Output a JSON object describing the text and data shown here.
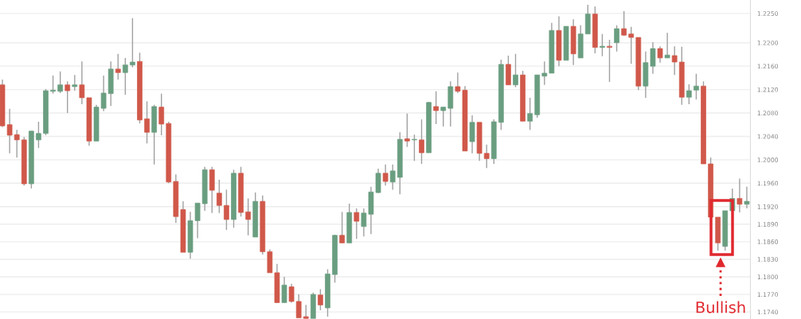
{
  "chart_data": {
    "type": "candlestick",
    "categories": [
      null,
      null,
      null,
      null,
      null,
      null,
      null,
      null,
      null,
      null,
      null,
      null,
      null,
      null,
      null,
      null,
      null,
      null,
      null,
      null,
      null,
      null,
      null,
      null,
      null,
      null,
      null,
      null,
      null,
      null,
      null,
      null,
      null,
      null,
      null,
      null,
      null,
      null,
      null,
      null,
      null,
      null,
      null,
      null,
      null,
      null,
      null,
      null,
      null,
      null,
      null,
      null,
      null,
      null,
      null,
      null,
      null,
      null,
      null,
      null,
      null,
      null,
      null,
      null,
      null,
      null,
      null,
      null,
      null,
      null,
      null,
      null,
      null,
      null,
      null,
      null,
      null,
      null,
      null,
      null,
      null,
      null,
      null,
      null,
      null,
      null,
      null,
      null,
      null,
      null,
      null,
      null,
      null,
      null,
      null,
      null,
      null,
      null,
      null,
      null,
      null,
      null,
      null,
      null
    ],
    "ohlc": [
      [
        1.2128,
        1.2137,
        1.2056,
        1.2058
      ],
      [
        1.206,
        1.2087,
        1.2011,
        1.2042
      ],
      [
        1.2043,
        1.2051,
        1.2004,
        1.2034
      ],
      [
        1.2034,
        1.2039,
        1.1956,
        1.1959
      ],
      [
        1.1959,
        1.2049,
        1.1951,
        1.2049
      ],
      [
        1.2034,
        1.2065,
        1.202,
        1.2045
      ],
      [
        1.2045,
        1.2121,
        1.2042,
        1.2118
      ],
      [
        1.2117,
        1.2144,
        1.2113,
        1.2119
      ],
      [
        1.2117,
        1.2151,
        1.2114,
        1.2128
      ],
      [
        1.2128,
        1.2134,
        1.208,
        1.2118
      ],
      [
        1.2125,
        1.2145,
        1.2118,
        1.2128
      ],
      [
        1.2128,
        1.2168,
        1.2095,
        1.2106
      ],
      [
        1.2106,
        1.2106,
        1.2024,
        1.2032
      ],
      [
        1.2032,
        1.2094,
        1.2032,
        1.209
      ],
      [
        1.2088,
        1.2144,
        1.2083,
        1.2114
      ],
      [
        1.2113,
        1.2168,
        1.2092,
        1.2155
      ],
      [
        1.2155,
        1.2181,
        1.2137,
        1.2149
      ],
      [
        1.2149,
        1.2174,
        1.2111,
        1.2162
      ],
      [
        1.2162,
        1.2242,
        1.2158,
        1.2167
      ],
      [
        1.2168,
        1.2183,
        1.2062,
        1.2068
      ],
      [
        1.207,
        1.21,
        1.2028,
        1.2047
      ],
      [
        1.2047,
        1.2094,
        1.1992,
        1.2091
      ],
      [
        1.209,
        1.2113,
        1.2042,
        1.2061
      ],
      [
        1.2062,
        1.2065,
        1.196,
        1.1962
      ],
      [
        1.1963,
        1.1975,
        1.1892,
        1.1903
      ],
      [
        1.1915,
        1.1929,
        1.1842,
        1.1842
      ],
      [
        1.1842,
        1.1911,
        1.1831,
        1.1896
      ],
      [
        1.1896,
        1.1926,
        1.1866,
        1.1926
      ],
      [
        1.1925,
        1.1988,
        1.1913,
        1.1983
      ],
      [
        1.1983,
        1.1988,
        1.1909,
        1.1948
      ],
      [
        1.1943,
        1.1966,
        1.1909,
        1.1922
      ],
      [
        1.1922,
        1.1949,
        1.188,
        1.1898
      ],
      [
        1.1898,
        1.1983,
        1.1884,
        1.1977
      ],
      [
        1.1977,
        1.1988,
        1.1903,
        1.191
      ],
      [
        1.1911,
        1.1934,
        1.1871,
        1.1898
      ],
      [
        1.1868,
        1.1944,
        1.1868,
        1.1929
      ],
      [
        1.1929,
        1.1939,
        1.1838,
        1.1843
      ],
      [
        1.1843,
        1.1847,
        1.1807,
        1.1807
      ],
      [
        1.1807,
        1.1822,
        1.1756,
        1.1756
      ],
      [
        1.1756,
        1.18,
        1.1756,
        1.1786
      ],
      [
        1.1783,
        1.1788,
        1.1756,
        1.1758
      ],
      [
        1.1758,
        1.177,
        1.173,
        1.173
      ],
      [
        1.1732,
        1.1752,
        1.1729,
        1.1729
      ],
      [
        1.1729,
        1.1773,
        1.1729,
        1.177
      ],
      [
        1.1769,
        1.1779,
        1.1743,
        1.1752
      ],
      [
        1.1747,
        1.1813,
        1.1732,
        1.1805
      ],
      [
        1.1804,
        1.1872,
        1.179,
        1.1871
      ],
      [
        1.1871,
        1.1911,
        1.1858,
        1.1858
      ],
      [
        1.1858,
        1.1925,
        1.1858,
        1.191
      ],
      [
        1.191,
        1.1917,
        1.1865,
        1.1895
      ],
      [
        1.1886,
        1.1917,
        1.1869,
        1.1909
      ],
      [
        1.1907,
        1.1954,
        1.1873,
        1.1945
      ],
      [
        1.1944,
        1.1985,
        1.1943,
        1.1977
      ],
      [
        1.1977,
        1.1992,
        1.1956,
        1.1963
      ],
      [
        1.1962,
        1.1992,
        1.1949,
        1.1981
      ],
      [
        1.197,
        1.2047,
        1.1941,
        1.2035
      ],
      [
        1.2036,
        1.2079,
        1.2022,
        1.2032
      ],
      [
        1.2034,
        1.2043,
        1.1998,
        1.2035
      ],
      [
        1.2034,
        1.2069,
        1.1993,
        1.2012
      ],
      [
        1.2012,
        1.2099,
        1.2012,
        1.2098
      ],
      [
        1.2091,
        1.2117,
        1.2061,
        1.2084
      ],
      [
        1.2084,
        1.209,
        1.2057,
        1.209
      ],
      [
        1.2088,
        1.2134,
        1.2057,
        1.2125
      ],
      [
        1.2125,
        1.2149,
        1.2114,
        1.2117
      ],
      [
        1.2119,
        1.2126,
        1.2015,
        1.2015
      ],
      [
        1.2031,
        1.2076,
        1.2011,
        1.2064
      ],
      [
        1.2064,
        1.2064,
        1.1998,
        1.2011
      ],
      [
        1.2011,
        1.2026,
        1.1986,
        1.2002
      ],
      [
        1.2002,
        1.2069,
        1.1993,
        1.2065
      ],
      [
        1.2064,
        1.2171,
        1.2051,
        1.2163
      ],
      [
        1.2163,
        1.2178,
        1.2128,
        1.2128
      ],
      [
        1.2128,
        1.2181,
        1.2124,
        1.2145
      ],
      [
        1.2145,
        1.2152,
        1.2066,
        1.2066
      ],
      [
        1.2066,
        1.2106,
        1.2051,
        1.2079
      ],
      [
        1.2077,
        1.2145,
        1.2072,
        1.2145
      ],
      [
        1.2143,
        1.2168,
        1.2128,
        1.2148
      ],
      [
        1.2148,
        1.2234,
        1.2148,
        1.2221
      ],
      [
        1.2221,
        1.2245,
        1.216,
        1.217
      ],
      [
        1.217,
        1.2228,
        1.217,
        1.2228
      ],
      [
        1.2228,
        1.224,
        1.2162,
        1.2181
      ],
      [
        1.2174,
        1.223,
        1.2174,
        1.2215
      ],
      [
        1.2215,
        1.2265,
        1.2215,
        1.2249
      ],
      [
        1.2249,
        1.2262,
        1.2182,
        1.2192
      ],
      [
        1.2192,
        1.2215,
        1.2177,
        1.2194
      ],
      [
        1.2194,
        1.2205,
        1.2133,
        1.2192
      ],
      [
        1.22,
        1.223,
        1.2185,
        1.2224
      ],
      [
        1.2224,
        1.2254,
        1.2212,
        1.2213
      ],
      [
        1.2215,
        1.2227,
        1.2164,
        1.2209
      ],
      [
        1.2209,
        1.2209,
        1.2119,
        1.2126
      ],
      [
        1.2126,
        1.2185,
        1.2106,
        1.2166
      ],
      [
        1.216,
        1.2201,
        1.2147,
        1.219
      ],
      [
        1.219,
        1.2194,
        1.2166,
        1.2174
      ],
      [
        1.2174,
        1.2217,
        1.2174,
        1.2179
      ],
      [
        1.2178,
        1.2194,
        1.2145,
        1.2167
      ],
      [
        1.2167,
        1.2193,
        1.2094,
        1.2107
      ],
      [
        1.2107,
        1.2129,
        1.2095,
        1.2118
      ],
      [
        1.2119,
        1.2147,
        1.2103,
        1.2126
      ],
      [
        1.2126,
        1.2134,
        1.1993,
        1.1993
      ],
      [
        1.1993,
        1.2004,
        1.1902,
        1.1902
      ],
      [
        1.1902,
        1.1902,
        1.1845,
        1.1858
      ],
      [
        1.1852,
        1.1913,
        1.1845,
        1.1913
      ],
      [
        1.1913,
        1.1951,
        1.1913,
        1.1934
      ],
      [
        1.1934,
        1.1968,
        1.191,
        1.1924
      ],
      [
        1.1924,
        1.1954,
        1.1917,
        1.1929
      ]
    ],
    "colors": [
      "#d0584a",
      "#d0584a",
      "#d0584a",
      "#d0584a",
      "#6a9e80",
      "#6a9e80",
      "#6a9e80",
      "#6a9e80",
      "#6a9e80",
      "#d0584a",
      "#6a9e80",
      "#d0584a",
      "#d0584a",
      "#6a9e80",
      "#6a9e80",
      "#6a9e80",
      "#d0584a",
      "#6a9e80",
      "#6a9e80",
      "#d0584a",
      "#d0584a",
      "#6a9e80",
      "#d0584a",
      "#d0584a",
      "#d0584a",
      "#d0584a",
      "#6a9e80",
      "#6a9e80",
      "#6a9e80",
      "#d0584a",
      "#d0584a",
      "#d0584a",
      "#6a9e80",
      "#d0584a",
      "#d0584a",
      "#6a9e80",
      "#d0584a",
      "#d0584a",
      "#d0584a",
      "#6a9e80",
      "#d0584a",
      "#d0584a",
      "#d0584a",
      "#6a9e80",
      "#d0584a",
      "#6a9e80",
      "#6a9e80",
      "#d0584a",
      "#6a9e80",
      "#d0584a",
      "#6a9e80",
      "#6a9e80",
      "#6a9e80",
      "#d0584a",
      "#6a9e80",
      "#6a9e80",
      "#d0584a",
      "#6a9e80",
      "#d0584a",
      "#6a9e80",
      "#d0584a",
      "#6a9e80",
      "#6a9e80",
      "#d0584a",
      "#d0584a",
      "#6a9e80",
      "#d0584a",
      "#d0584a",
      "#6a9e80",
      "#6a9e80",
      "#d0584a",
      "#6a9e80",
      "#d0584a",
      "#6a9e80",
      "#6a9e80",
      "#6a9e80",
      "#6a9e80",
      "#d0584a",
      "#6a9e80",
      "#d0584a",
      "#6a9e80",
      "#6a9e80",
      "#d0584a",
      "#6a9e80",
      "#d0584a",
      "#6a9e80",
      "#d0584a",
      "#d0584a",
      "#d0584a",
      "#6a9e80",
      "#6a9e80",
      "#d0584a",
      "#6a9e80",
      "#d0584a",
      "#d0584a",
      "#6a9e80",
      "#6a9e80",
      "#d0584a",
      "#d0584a",
      "#d0584a",
      "#6a9e80",
      "#6a9e80",
      "#d0584a",
      "#6a9e80"
    ],
    "ylim": [
      1.1728,
      1.2273
    ],
    "yticks": [
      {
        "value": 1.174,
        "label": "1.1740"
      },
      {
        "value": 1.177,
        "label": "1.1770"
      },
      {
        "value": 1.18,
        "label": "1.1800"
      },
      {
        "value": 1.183,
        "label": "1.1830"
      },
      {
        "value": 1.186,
        "label": "1.1860"
      },
      {
        "value": 1.189,
        "label": "1.1890"
      },
      {
        "value": 1.192,
        "label": "1.1920"
      },
      {
        "value": 1.196,
        "label": "1.1960"
      },
      {
        "value": 1.2,
        "label": "1.2000"
      },
      {
        "value": 1.204,
        "label": "1.2040"
      },
      {
        "value": 1.208,
        "label": "1.2080"
      },
      {
        "value": 1.212,
        "label": "1.2120"
      },
      {
        "value": 1.216,
        "label": "1.2160"
      },
      {
        "value": 1.22,
        "label": "1.2200"
      },
      {
        "value": 1.225,
        "label": "1.2250"
      }
    ],
    "grid": "y",
    "annotations": [
      "Bullish"
    ]
  }
}
